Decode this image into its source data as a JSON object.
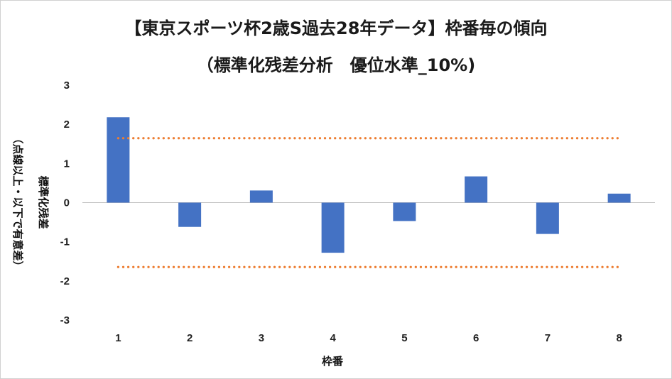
{
  "chart_data": {
    "type": "bar",
    "title": "【東京スポーツ杯2歳S過去28年データ】枠番毎の傾向",
    "subtitle": "（標準化残差分析　優位水準_10%)",
    "xlabel": "枠番",
    "ylabel": "標準化残差",
    "ylabel_note": "（点線以上・以下で有意差）",
    "categories": [
      "1",
      "2",
      "3",
      "4",
      "5",
      "6",
      "7",
      "8"
    ],
    "values": [
      2.18,
      -0.62,
      0.31,
      -1.28,
      -0.47,
      0.67,
      -0.8,
      0.23
    ],
    "ylim": [
      -3,
      3
    ],
    "yticks": [
      "3",
      "2",
      "1",
      "0",
      "-1",
      "-2",
      "-3"
    ],
    "threshold_upper": 1.645,
    "threshold_lower": -1.645,
    "grid": false,
    "legend": "none",
    "colors": {
      "bar": "#4472C4",
      "threshold": "#ED7D31",
      "axis": "#bfbfbf"
    }
  }
}
